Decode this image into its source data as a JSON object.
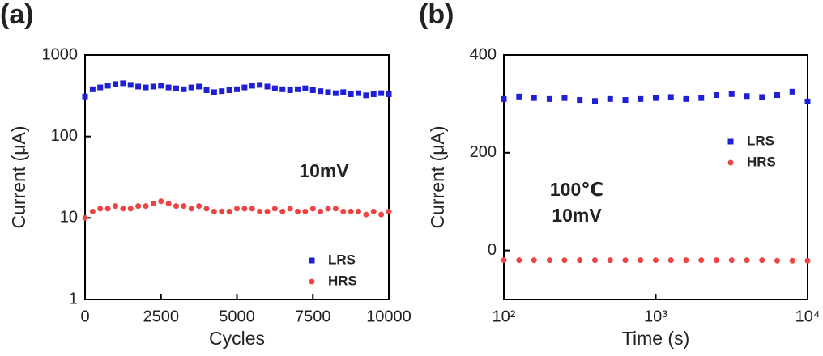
{
  "chart_data": [
    {
      "type": "scatter",
      "panel_label": "(a)",
      "x_label": "Cycles",
      "y_label": "Current (μA)",
      "ylog": true,
      "xlim": [
        0,
        10000
      ],
      "ylim": [
        1,
        1000
      ],
      "xticks": [
        0,
        2500,
        5000,
        7500,
        10000
      ],
      "yticks": [
        1,
        10,
        100,
        1000
      ],
      "legend": "lower right",
      "annotations": [
        "10mV"
      ],
      "x": [
        0,
        250,
        500,
        750,
        1000,
        1250,
        1500,
        1750,
        2000,
        2250,
        2500,
        2750,
        3000,
        3250,
        3500,
        3750,
        4000,
        4250,
        4500,
        4750,
        5000,
        5250,
        5500,
        5750,
        6000,
        6250,
        6500,
        6750,
        7000,
        7250,
        7500,
        7750,
        8000,
        8250,
        8500,
        8750,
        9000,
        9250,
        9500,
        9750,
        10000
      ],
      "series": [
        {
          "name": "LRS",
          "color": "#1f1fd8",
          "marker": "square",
          "values": [
            310,
            380,
            400,
            420,
            440,
            450,
            430,
            410,
            400,
            410,
            420,
            400,
            390,
            380,
            400,
            410,
            370,
            350,
            360,
            370,
            380,
            400,
            420,
            430,
            410,
            390,
            380,
            370,
            380,
            390,
            370,
            360,
            350,
            340,
            350,
            330,
            340,
            320,
            330,
            340,
            330
          ]
        },
        {
          "name": "HRS",
          "color": "#ee4444",
          "marker": "circle",
          "values": [
            10,
            12,
            13,
            13,
            14,
            13,
            13,
            14,
            14,
            15,
            16,
            15,
            14,
            14,
            13,
            14,
            13,
            12,
            12,
            12,
            13,
            13,
            13,
            12,
            12,
            13,
            12,
            13,
            12,
            12,
            13,
            12,
            13,
            13,
            12,
            12,
            12,
            11,
            12,
            11,
            12
          ]
        }
      ]
    },
    {
      "type": "scatter",
      "panel_label": "(b)",
      "x_label": "Time (s)",
      "y_label": "Current (μA)",
      "xlog": true,
      "xlim": [
        100,
        10000
      ],
      "ylim": [
        -100,
        400
      ],
      "xticks": [
        {
          "value": 100,
          "label": "10²"
        },
        {
          "value": 1000,
          "label": "10³"
        },
        {
          "value": 10000,
          "label": "10⁴"
        }
      ],
      "yticks": [
        0,
        200,
        400
      ],
      "legend": "center right",
      "annotations": [
        "100℃",
        "10mV"
      ],
      "x": [
        100,
        126,
        158,
        200,
        251,
        316,
        398,
        501,
        631,
        794,
        1000,
        1259,
        1585,
        1995,
        2512,
        3162,
        3981,
        5012,
        6310,
        7943,
        10000
      ],
      "series": [
        {
          "name": "LRS",
          "color": "#1f1fd8",
          "marker": "square",
          "values": [
            310,
            315,
            312,
            310,
            312,
            308,
            306,
            310,
            308,
            310,
            312,
            314,
            310,
            312,
            318,
            320,
            316,
            314,
            318,
            325,
            305
          ]
        },
        {
          "name": "HRS",
          "color": "#ee4444",
          "marker": "circle",
          "values": [
            -20,
            -20,
            -20,
            -20,
            -20,
            -20,
            -20,
            -20,
            -20,
            -20,
            -20,
            -20,
            -20,
            -20,
            -20,
            -20,
            -20,
            -20,
            -21,
            -21,
            -21
          ]
        }
      ]
    }
  ]
}
